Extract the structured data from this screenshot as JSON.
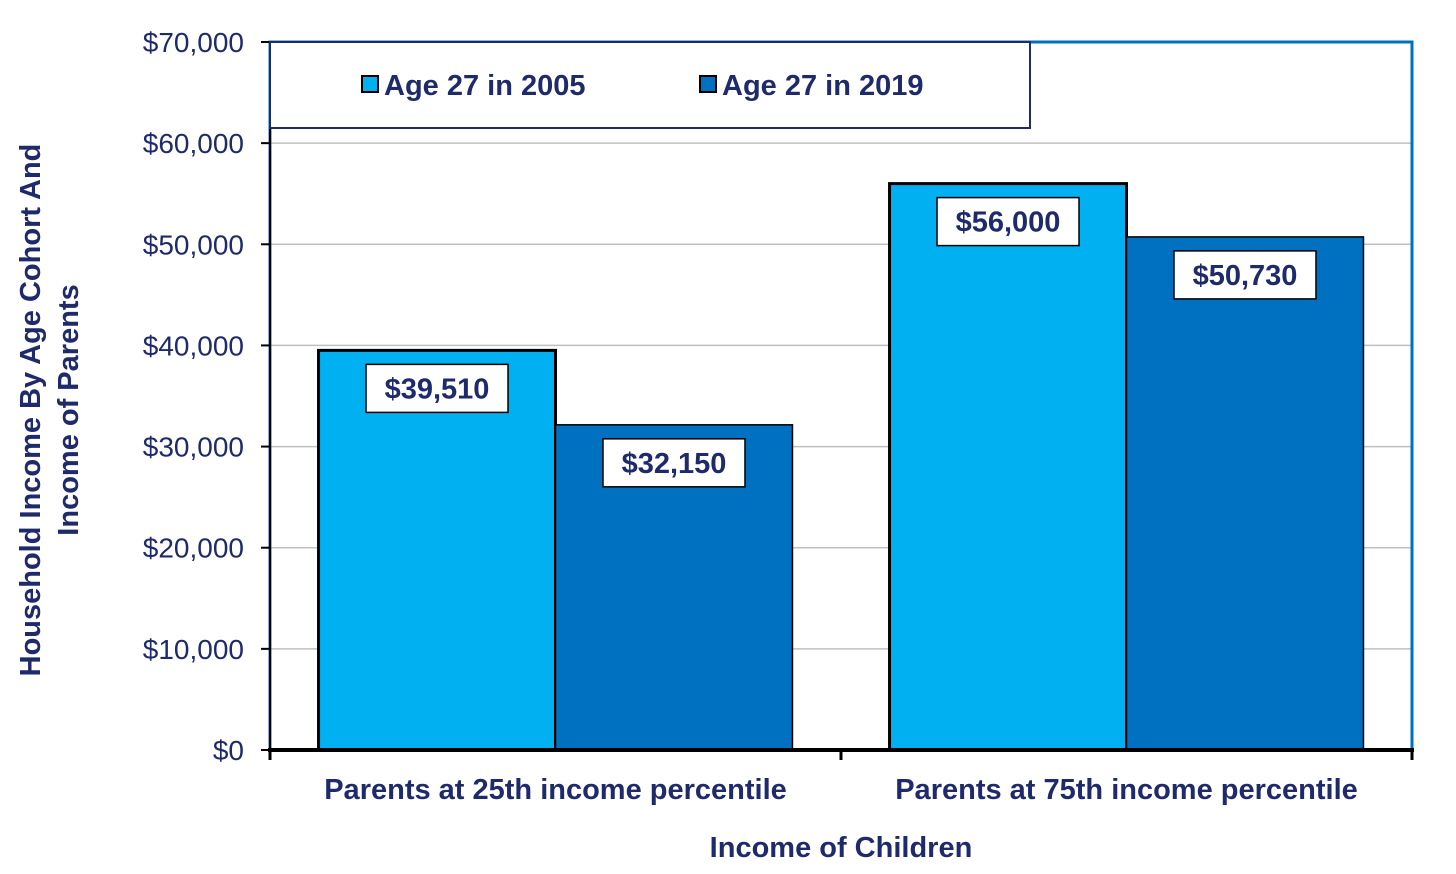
{
  "chart_data": {
    "type": "bar",
    "title": "",
    "xlabel": "Income of Children",
    "ylabel_lines": [
      "Household Income By Age Cohort And",
      "Income of Parents"
    ],
    "categories": [
      "Parents at 25th income percentile",
      "Parents at 75th income percentile"
    ],
    "series": [
      {
        "name": "Age 27 in 2005",
        "values": [
          39510,
          56000
        ],
        "labels": [
          "$39,510",
          "$56,000"
        ],
        "color": "#00b0f0"
      },
      {
        "name": "Age 27 in 2019",
        "values": [
          32150,
          50730
        ],
        "labels": [
          "$32,150",
          "$50,730"
        ],
        "color": "#0070c0"
      }
    ],
    "ylim": [
      0,
      70000
    ],
    "yticks": [
      {
        "value": 0,
        "label": "$0"
      },
      {
        "value": 10000,
        "label": "$10,000"
      },
      {
        "value": 20000,
        "label": "$20,000"
      },
      {
        "value": 30000,
        "label": "$30,000"
      },
      {
        "value": 40000,
        "label": "$40,000"
      },
      {
        "value": 50000,
        "label": "$50,000"
      },
      {
        "value": 60000,
        "label": "$60,000"
      },
      {
        "value": 70000,
        "label": "$70,000"
      }
    ],
    "grid": true,
    "legend_position": "top-left",
    "colors": {
      "text": "#1f2a6b",
      "plot_border": "#0070c0",
      "gridline": "#bfbfbf",
      "bar_outline": "#000000"
    }
  }
}
